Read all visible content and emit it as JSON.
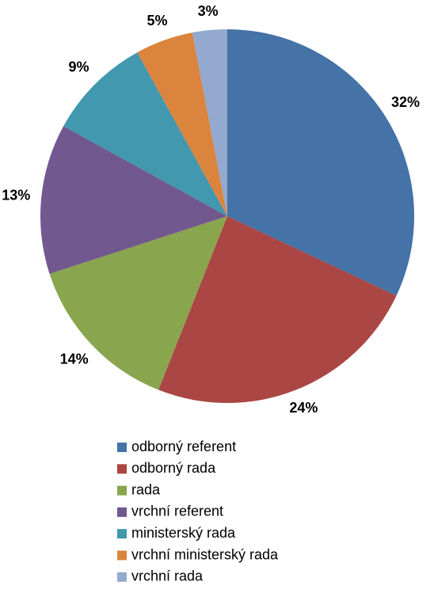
{
  "chart_data": {
    "type": "pie",
    "categories": [
      "odborný referent",
      "odborný rada",
      "rada",
      "vrchní referent",
      "ministerský rada",
      "vrchní ministerský rada",
      "vrchní rada"
    ],
    "values": [
      32,
      24,
      14,
      13,
      9,
      5,
      3
    ],
    "value_labels": [
      "32%",
      "24%",
      "14%",
      "13%",
      "9%",
      "5%",
      "3%"
    ],
    "colors": [
      "#4572a7",
      "#aa4643",
      "#89a54e",
      "#71588f",
      "#4198af",
      "#db843d",
      "#93a9cf"
    ],
    "legend": "bottom"
  }
}
